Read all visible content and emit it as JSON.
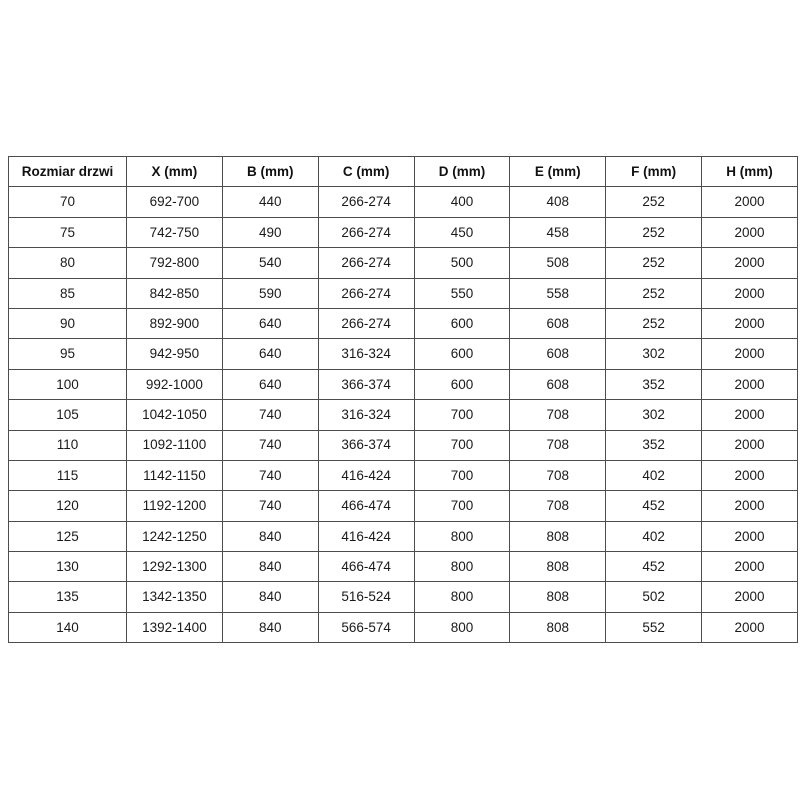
{
  "table": {
    "name": "door-size-table",
    "headers": [
      "Rozmiar drzwi",
      "X (mm)",
      "B (mm)",
      "C (mm)",
      "D (mm)",
      "E (mm)",
      "F (mm)",
      "H (mm)"
    ],
    "rows": [
      [
        "70",
        "692-700",
        "440",
        "266-274",
        "400",
        "408",
        "252",
        "2000"
      ],
      [
        "75",
        "742-750",
        "490",
        "266-274",
        "450",
        "458",
        "252",
        "2000"
      ],
      [
        "80",
        "792-800",
        "540",
        "266-274",
        "500",
        "508",
        "252",
        "2000"
      ],
      [
        "85",
        "842-850",
        "590",
        "266-274",
        "550",
        "558",
        "252",
        "2000"
      ],
      [
        "90",
        "892-900",
        "640",
        "266-274",
        "600",
        "608",
        "252",
        "2000"
      ],
      [
        "95",
        "942-950",
        "640",
        "316-324",
        "600",
        "608",
        "302",
        "2000"
      ],
      [
        "100",
        "992-1000",
        "640",
        "366-374",
        "600",
        "608",
        "352",
        "2000"
      ],
      [
        "105",
        "1042-1050",
        "740",
        "316-324",
        "700",
        "708",
        "302",
        "2000"
      ],
      [
        "110",
        "1092-1100",
        "740",
        "366-374",
        "700",
        "708",
        "352",
        "2000"
      ],
      [
        "115",
        "1142-1150",
        "740",
        "416-424",
        "700",
        "708",
        "402",
        "2000"
      ],
      [
        "120",
        "1192-1200",
        "740",
        "466-474",
        "700",
        "708",
        "452",
        "2000"
      ],
      [
        "125",
        "1242-1250",
        "840",
        "416-424",
        "800",
        "808",
        "402",
        "2000"
      ],
      [
        "130",
        "1292-1300",
        "840",
        "466-474",
        "800",
        "808",
        "452",
        "2000"
      ],
      [
        "135",
        "1342-1350",
        "840",
        "516-524",
        "800",
        "808",
        "502",
        "2000"
      ],
      [
        "140",
        "1392-1400",
        "840",
        "566-574",
        "800",
        "808",
        "552",
        "2000"
      ]
    ]
  },
  "colors": {
    "background": "#ffffff",
    "border": "#4d4d4d",
    "text": "#1a1a1a"
  }
}
